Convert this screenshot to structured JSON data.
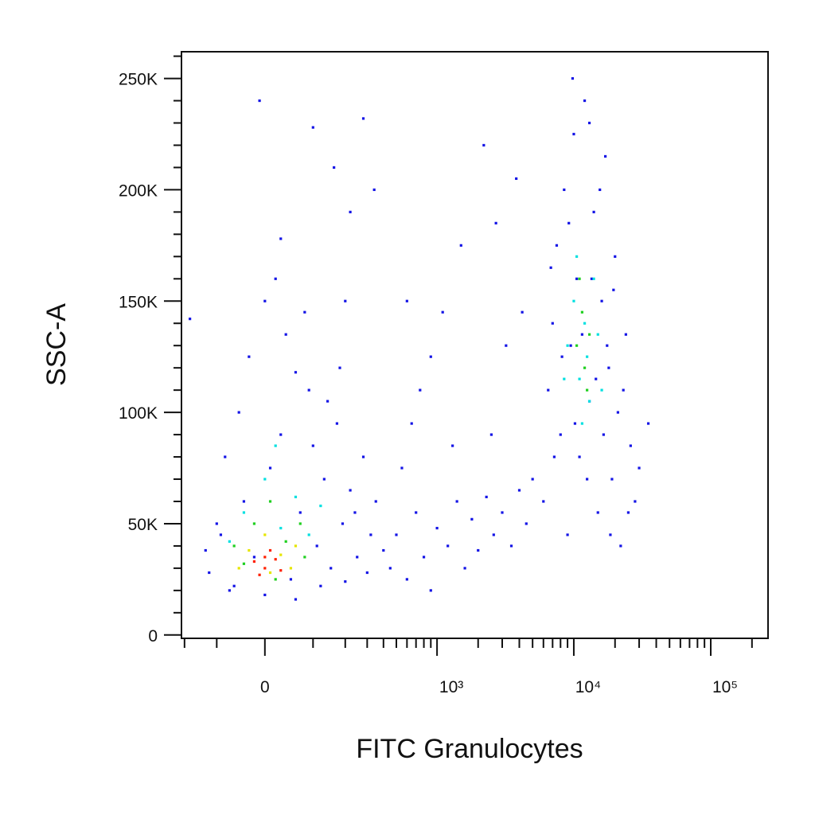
{
  "chart_data": {
    "type": "scatter",
    "x_label": "FITC Granulocytes",
    "y_label": "SSC-A",
    "xscale": "logicle",
    "xlim": [
      -212,
      262000
    ],
    "ylim": [
      -1500,
      262000
    ],
    "xticks": [
      0,
      {
        "value": 1000,
        "label": "10³"
      },
      {
        "value": 10000,
        "label": "10⁴"
      },
      {
        "value": 100000,
        "label": "10⁵"
      }
    ],
    "xminorticks": [
      -200,
      -100,
      100,
      200,
      300,
      400,
      500,
      600,
      700,
      800,
      900,
      2000,
      3000,
      4000,
      5000,
      6000,
      7000,
      8000,
      9000,
      20000,
      30000,
      40000,
      50000,
      60000,
      70000,
      80000,
      90000,
      200000
    ],
    "yticks": [
      0,
      {
        "value": 50000,
        "label": "50K"
      },
      {
        "value": 100000,
        "label": "100K"
      },
      {
        "value": 150000,
        "label": "150K"
      },
      {
        "value": 200000,
        "label": "200K"
      },
      {
        "value": 250000,
        "label": "250K"
      }
    ],
    "yminorticks": [
      10000,
      20000,
      30000,
      40000,
      60000,
      70000,
      80000,
      90000,
      110000,
      120000,
      130000,
      140000,
      160000,
      170000,
      180000,
      190000,
      210000,
      220000,
      230000,
      240000,
      260000
    ],
    "series": [
      {
        "color": "#1414e6",
        "x": [
          -120,
          -90,
          -60,
          -40,
          -20,
          0,
          10,
          30,
          50,
          70,
          90,
          110,
          130,
          150,
          170,
          190,
          220,
          250,
          280,
          320,
          -80,
          -50,
          -30,
          0,
          20,
          40,
          60,
          100,
          140,
          180,
          -100,
          -130,
          -70,
          60,
          120,
          200,
          240,
          300,
          350,
          400,
          -10,
          30,
          100,
          160,
          220,
          280,
          340,
          -180,
          80,
          200,
          450,
          500,
          600,
          700,
          800,
          900,
          1000,
          1200,
          1400,
          1600,
          1800,
          2000,
          2300,
          2600,
          3000,
          3500,
          4000,
          4500,
          5000,
          550,
          650,
          750,
          1100,
          1500,
          2200,
          2700,
          3200,
          1300,
          900,
          4200,
          3800,
          2500,
          600,
          6000,
          6500,
          7000,
          7500,
          8000,
          8500,
          9000,
          9500,
          10000,
          10500,
          11000,
          12000,
          13000,
          14000,
          15000,
          16000,
          17000,
          18000,
          19000,
          20000,
          21000,
          22000,
          24000,
          26000,
          28000,
          30000,
          35000,
          7200,
          8200,
          9200,
          10200,
          11500,
          12500,
          13500,
          14500,
          15500,
          16500,
          17500,
          19500,
          23000,
          9800,
          13000,
          6800,
          25000,
          18500
        ],
        "values": [
          28000,
          45000,
          22000,
          60000,
          35000,
          18000,
          75000,
          90000,
          25000,
          55000,
          110000,
          40000,
          70000,
          30000,
          95000,
          50000,
          65000,
          35000,
          80000,
          45000,
          80000,
          100000,
          125000,
          150000,
          160000,
          135000,
          118000,
          85000,
          105000,
          120000,
          50000,
          38000,
          20000,
          16000,
          22000,
          24000,
          55000,
          28000,
          60000,
          38000,
          240000,
          178000,
          228000,
          210000,
          190000,
          232000,
          200000,
          142000,
          145000,
          150000,
          30000,
          45000,
          25000,
          55000,
          35000,
          20000,
          48000,
          40000,
          60000,
          30000,
          52000,
          38000,
          62000,
          45000,
          55000,
          40000,
          65000,
          50000,
          70000,
          75000,
          95000,
          110000,
          145000,
          175000,
          220000,
          185000,
          130000,
          85000,
          125000,
          145000,
          205000,
          90000,
          150000,
          60000,
          110000,
          140000,
          175000,
          90000,
          200000,
          45000,
          130000,
          225000,
          160000,
          80000,
          240000,
          105000,
          190000,
          55000,
          150000,
          215000,
          120000,
          70000,
          170000,
          100000,
          40000,
          135000,
          85000,
          60000,
          75000,
          95000,
          80000,
          125000,
          185000,
          95000,
          135000,
          70000,
          160000,
          115000,
          200000,
          90000,
          130000,
          155000,
          110000,
          250000,
          230000,
          165000,
          55000,
          45000
        ]
      },
      {
        "color": "#00e0e0",
        "x": [
          -40,
          0,
          30,
          60,
          -70,
          90,
          20,
          120,
          9000,
          10000,
          11000,
          12000,
          13000,
          14000,
          10500,
          11500,
          12500,
          15000,
          8500,
          16000
        ],
        "values": [
          55000,
          70000,
          48000,
          62000,
          42000,
          45000,
          85000,
          58000,
          130000,
          150000,
          115000,
          140000,
          105000,
          160000,
          170000,
          95000,
          125000,
          135000,
          115000,
          110000
        ]
      },
      {
        "color": "#20d020",
        "x": [
          -60,
          -20,
          10,
          40,
          70,
          -40,
          80,
          20,
          10500,
          11500,
          12000,
          13000,
          11000,
          12500
        ],
        "values": [
          40000,
          50000,
          60000,
          42000,
          50000,
          32000,
          35000,
          25000,
          130000,
          145000,
          120000,
          135000,
          160000,
          110000
        ]
      },
      {
        "color": "#e6e600",
        "x": [
          -30,
          0,
          30,
          60,
          -50,
          10,
          50
        ],
        "values": [
          38000,
          45000,
          36000,
          40000,
          30000,
          28000,
          30000
        ]
      },
      {
        "color": "#ff2000",
        "x": [
          -20,
          0,
          20,
          10,
          -10,
          30,
          0
        ],
        "values": [
          33000,
          30000,
          34000,
          38000,
          27000,
          29000,
          35000
        ]
      }
    ]
  }
}
